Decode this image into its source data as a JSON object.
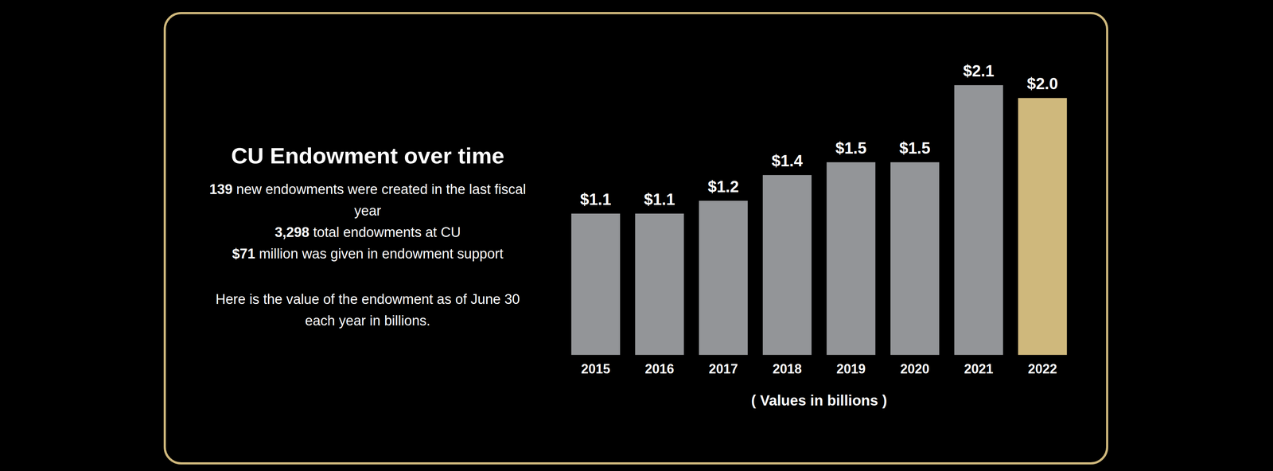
{
  "chart_data": {
    "type": "bar",
    "title": "CU Endowment over time",
    "annotations": [
      {
        "emphasis": "139",
        "text": "new endowments were created in the last fiscal year"
      },
      {
        "emphasis": "3,298",
        "text": "total endowments at CU"
      },
      {
        "emphasis": "$71",
        "text": "million was given in endowment support"
      }
    ],
    "subtitle": "Here is the value of the endowment as of June 30 each year in billions.",
    "categories": [
      "2015",
      "2016",
      "2017",
      "2018",
      "2019",
      "2020",
      "2021",
      "2022"
    ],
    "values": [
      1.1,
      1.1,
      1.2,
      1.4,
      1.5,
      1.5,
      2.1,
      2.0
    ],
    "value_labels": [
      "$1.1",
      "$1.1",
      "$1.2",
      "$1.4",
      "$1.5",
      "$1.5",
      "$2.1",
      "$2.0"
    ],
    "colors": [
      "#939598",
      "#939598",
      "#939598",
      "#939598",
      "#939598",
      "#939598",
      "#939598",
      "#cfb87c"
    ],
    "xlabel": "( Values in billions )",
    "ylim": [
      0,
      2.1
    ],
    "data_labels": true,
    "tick_labels": "x",
    "grid": false
  }
}
